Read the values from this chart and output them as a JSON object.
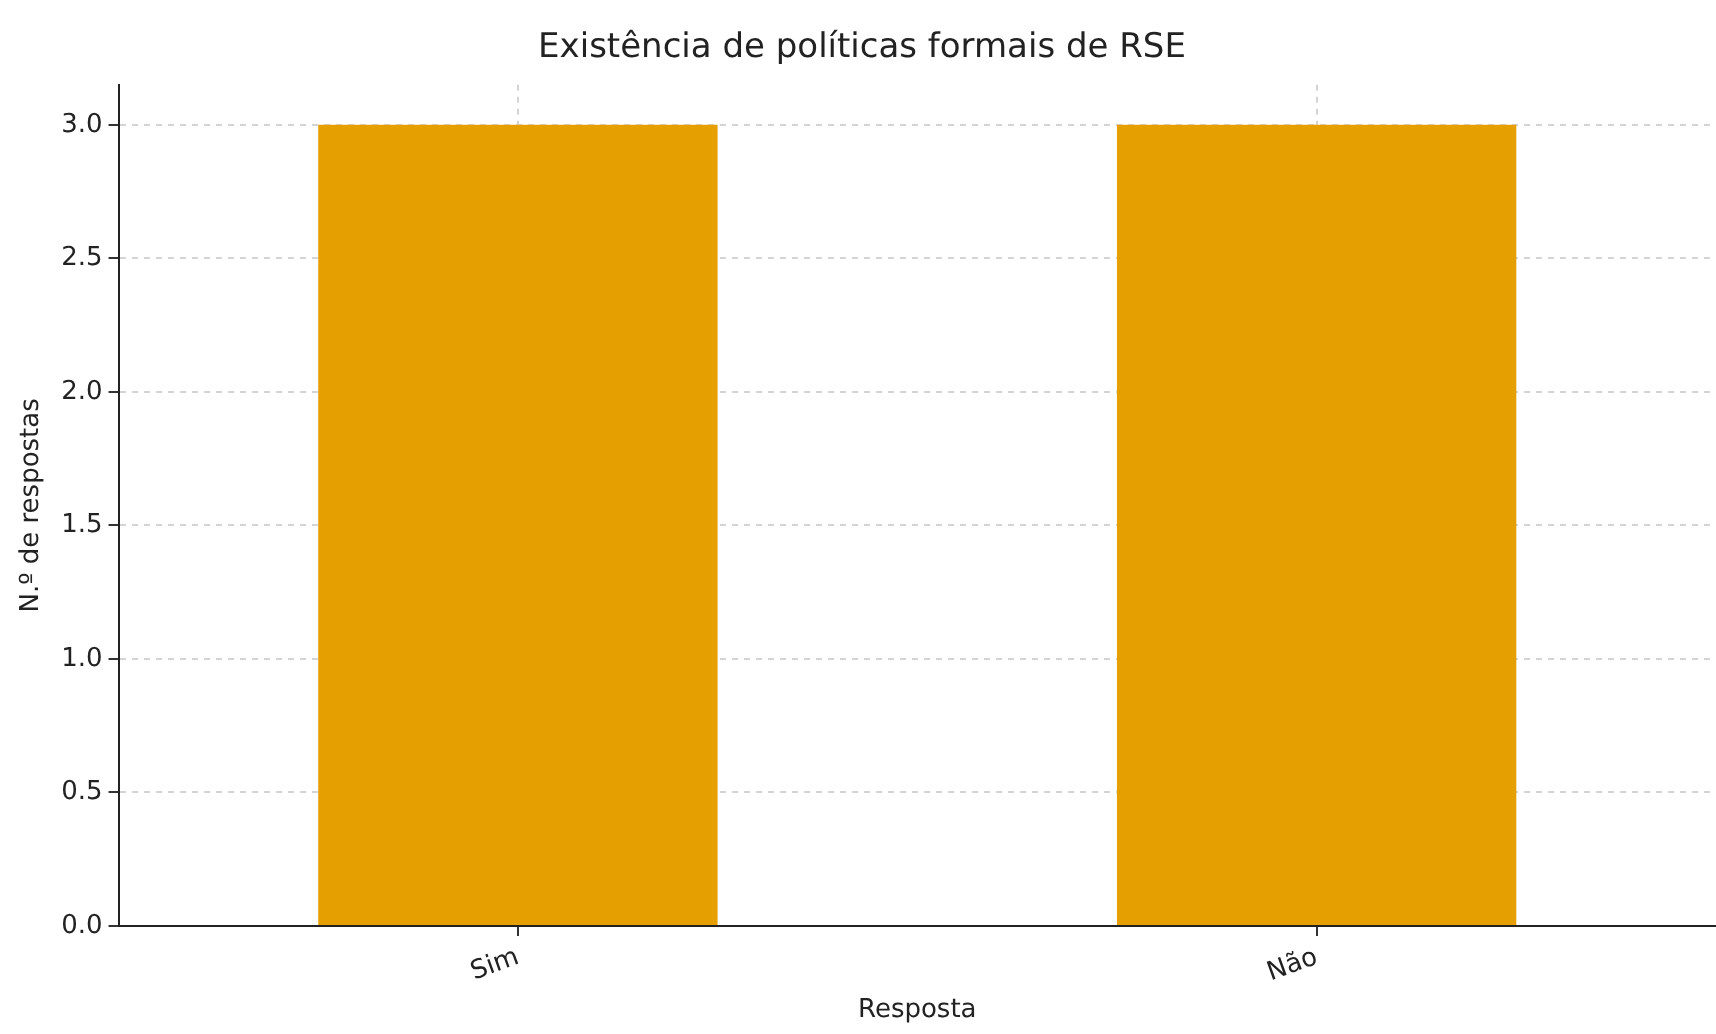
{
  "chart_data": {
    "type": "bar",
    "title": "Existência de políticas formais de RSE",
    "xlabel": "Resposta",
    "ylabel": "N.º de respostas",
    "categories": [
      "Sim",
      "Não"
    ],
    "values": [
      3,
      3
    ],
    "color": "#e69f00",
    "ylim": [
      0,
      3.15
    ],
    "yticks": [
      {
        "value": 0,
        "label": "0.0"
      },
      0.5,
      {
        "value": 1,
        "label": "1.0"
      },
      1.5,
      {
        "value": 2,
        "label": "2.0"
      },
      2.5,
      {
        "value": 3,
        "label": "3.0"
      }
    ],
    "grid": true
  }
}
